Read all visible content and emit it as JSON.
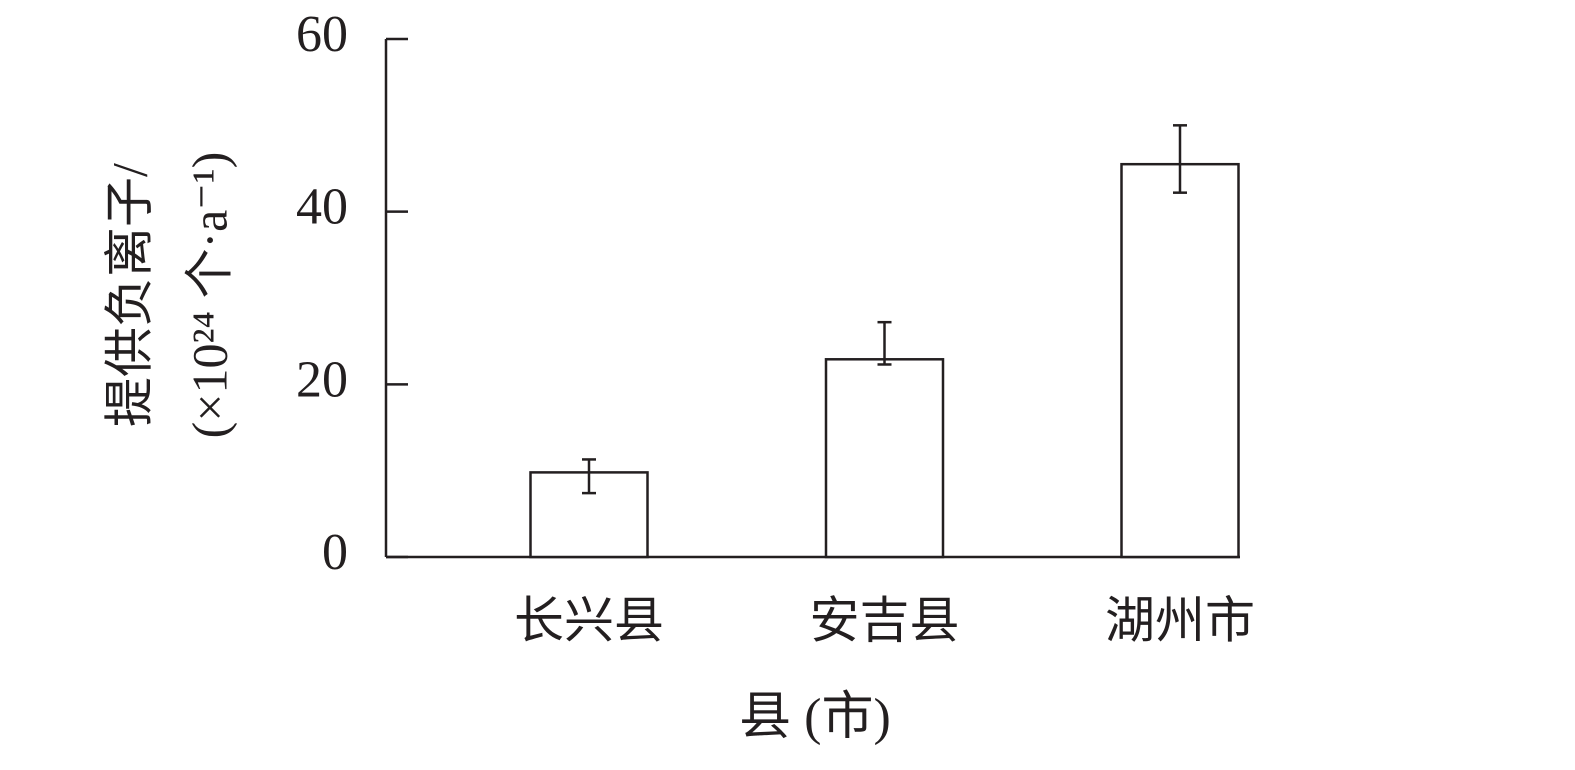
{
  "chart_data": {
    "type": "bar",
    "x_label": "县 (市)",
    "y_label": [
      "提供负离子/",
      "(×10²⁴ 个·a⁻¹)"
    ],
    "categories": [
      "长兴县",
      "安吉县",
      "湖州市"
    ],
    "values": [
      9.8,
      22.9,
      45.5
    ],
    "error_plus": [
      1.5,
      4.3,
      4.5
    ],
    "error_minus": [
      2.4,
      0.6,
      3.3
    ],
    "color": "#ffffff",
    "ylim": [
      0,
      60
    ],
    "yticks": [
      0,
      20,
      40,
      60
    ],
    "grid": false
  }
}
